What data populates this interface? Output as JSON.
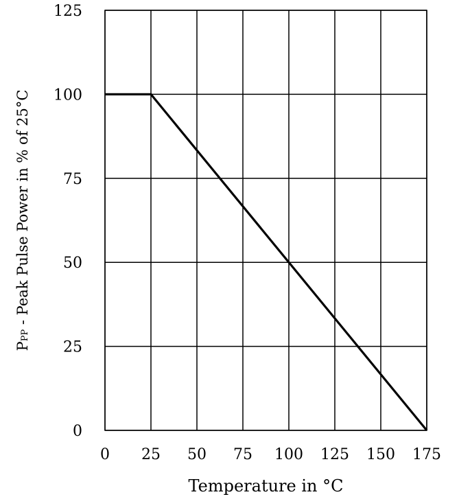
{
  "chart_data": {
    "type": "line",
    "xlabel": "Temperature in °C",
    "ylabel_main": "P",
    "ylabel_sub": "PP",
    "ylabel_rest": " - Peak Pulse Power in % of 25°C",
    "xlim": [
      0,
      175
    ],
    "ylim": [
      0,
      125
    ],
    "x_ticks": [
      0,
      25,
      50,
      75,
      100,
      125,
      150,
      175
    ],
    "y_ticks": [
      0,
      25,
      50,
      75,
      100,
      125
    ],
    "grid": true,
    "series": [
      {
        "x": [
          0,
          25,
          175
        ],
        "y": [
          100,
          100,
          0
        ]
      }
    ]
  }
}
